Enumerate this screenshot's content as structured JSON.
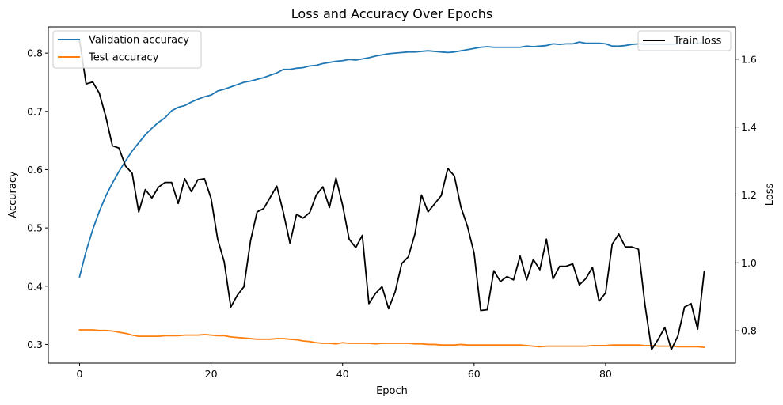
{
  "chart_data": {
    "type": "line",
    "title": "Loss and Accuracy Over Epochs",
    "xlabel": "Epoch",
    "ylabel_left": "Accuracy",
    "ylabel_right": "Loss",
    "xlim": [
      -4.75,
      99.75
    ],
    "ylim_left": [
      0.268,
      0.845
    ],
    "ylim_right": [
      0.705,
      1.695
    ],
    "x_ticks": [
      0,
      20,
      40,
      60,
      80
    ],
    "y_ticks_left": [
      0.3,
      0.4,
      0.5,
      0.6,
      0.7,
      0.8
    ],
    "y_ticks_right": [
      0.8,
      1.0,
      1.2,
      1.4,
      1.6
    ],
    "grid": false,
    "legend_left_placement": "top-left",
    "legend_right_placement": "top-right",
    "series": [
      {
        "name": "Validation accuracy",
        "axis": "left",
        "color": "#1f77b4",
        "values": [
          0.416,
          0.46,
          0.497,
          0.528,
          0.555,
          0.577,
          0.597,
          0.615,
          0.632,
          0.646,
          0.66,
          0.671,
          0.681,
          0.689,
          0.701,
          0.707,
          0.71,
          0.716,
          0.721,
          0.725,
          0.728,
          0.735,
          0.738,
          0.742,
          0.746,
          0.75,
          0.752,
          0.755,
          0.758,
          0.762,
          0.766,
          0.772,
          0.772,
          0.774,
          0.775,
          0.778,
          0.779,
          0.782,
          0.784,
          0.786,
          0.787,
          0.789,
          0.788,
          0.79,
          0.792,
          0.795,
          0.797,
          0.799,
          0.8,
          0.801,
          0.802,
          0.802,
          0.803,
          0.804,
          0.803,
          0.802,
          0.801,
          0.802,
          0.804,
          0.806,
          0.808,
          0.81,
          0.811,
          0.81,
          0.81,
          0.81,
          0.81,
          0.81,
          0.812,
          0.811,
          0.812,
          0.813,
          0.816,
          0.815,
          0.816,
          0.816,
          0.819,
          0.817,
          0.817,
          0.817,
          0.816,
          0.812,
          0.812,
          0.813,
          0.815,
          0.816,
          0.815,
          0.815,
          0.815,
          0.815,
          0.815,
          0.816,
          0.816,
          0.817,
          0.817,
          0.818
        ]
      },
      {
        "name": "Test accuracy",
        "axis": "left",
        "color": "#ff7f0e",
        "values": [
          0.325,
          0.325,
          0.325,
          0.324,
          0.324,
          0.323,
          0.321,
          0.319,
          0.316,
          0.314,
          0.314,
          0.314,
          0.314,
          0.315,
          0.315,
          0.315,
          0.316,
          0.316,
          0.316,
          0.317,
          0.316,
          0.315,
          0.315,
          0.313,
          0.312,
          0.311,
          0.31,
          0.309,
          0.309,
          0.309,
          0.31,
          0.31,
          0.309,
          0.308,
          0.306,
          0.305,
          0.303,
          0.302,
          0.302,
          0.301,
          0.303,
          0.302,
          0.302,
          0.302,
          0.302,
          0.301,
          0.302,
          0.302,
          0.302,
          0.302,
          0.302,
          0.301,
          0.301,
          0.3,
          0.3,
          0.299,
          0.299,
          0.299,
          0.3,
          0.299,
          0.299,
          0.299,
          0.299,
          0.299,
          0.299,
          0.299,
          0.299,
          0.299,
          0.298,
          0.297,
          0.296,
          0.297,
          0.297,
          0.297,
          0.297,
          0.297,
          0.297,
          0.297,
          0.298,
          0.298,
          0.298,
          0.299,
          0.299,
          0.299,
          0.299,
          0.299,
          0.298,
          0.298,
          0.297,
          0.297,
          0.297,
          0.296,
          0.296,
          0.296,
          0.296,
          0.295
        ]
      },
      {
        "name": "Train loss",
        "axis": "right",
        "color": "#000000",
        "values": [
          1.655,
          1.527,
          1.533,
          1.5,
          1.43,
          1.345,
          1.338,
          1.285,
          1.264,
          1.15,
          1.216,
          1.191,
          1.223,
          1.237,
          1.237,
          1.175,
          1.248,
          1.21,
          1.245,
          1.248,
          1.19,
          1.07,
          1.003,
          0.87,
          0.905,
          0.93,
          1.065,
          1.15,
          1.16,
          1.193,
          1.226,
          1.148,
          1.058,
          1.143,
          1.132,
          1.148,
          1.2,
          1.224,
          1.163,
          1.25,
          1.17,
          1.07,
          1.045,
          1.081,
          0.88,
          0.91,
          0.93,
          0.865,
          0.915,
          0.998,
          1.018,
          1.085,
          1.2,
          1.15,
          1.174,
          1.198,
          1.278,
          1.256,
          1.164,
          1.107,
          1.029,
          0.86,
          0.862,
          0.977,
          0.945,
          0.96,
          0.95,
          1.02,
          0.95,
          1.01,
          0.98,
          1.07,
          0.953,
          0.99,
          0.99,
          0.997,
          0.935,
          0.954,
          0.987,
          0.887,
          0.912,
          1.055,
          1.085,
          1.047,
          1.047,
          1.04,
          0.875,
          0.745,
          0.775,
          0.81,
          0.745,
          0.785,
          0.87,
          0.88,
          0.805,
          0.975
        ]
      }
    ]
  }
}
